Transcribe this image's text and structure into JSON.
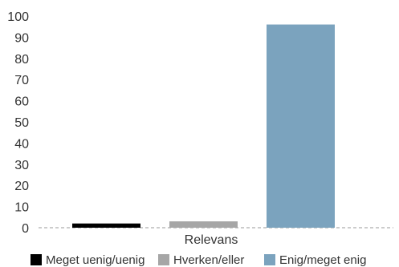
{
  "chart_data": {
    "type": "bar",
    "categories": [
      "Relevans"
    ],
    "series": [
      {
        "name": "Meget uenig/uenig",
        "values": [
          2
        ],
        "color": "#000000"
      },
      {
        "name": "Hverken/eller",
        "values": [
          3
        ],
        "color": "#a6a6a6"
      },
      {
        "name": "Enig/meget enig",
        "values": [
          96
        ],
        "color": "#7ba3be"
      }
    ],
    "ylim": [
      0,
      100
    ],
    "yticks": [
      0,
      10,
      20,
      30,
      40,
      50,
      60,
      70,
      80,
      90,
      100
    ],
    "title": "",
    "xlabel": "",
    "ylabel": "",
    "grid": false,
    "legend_position": "bottom"
  }
}
